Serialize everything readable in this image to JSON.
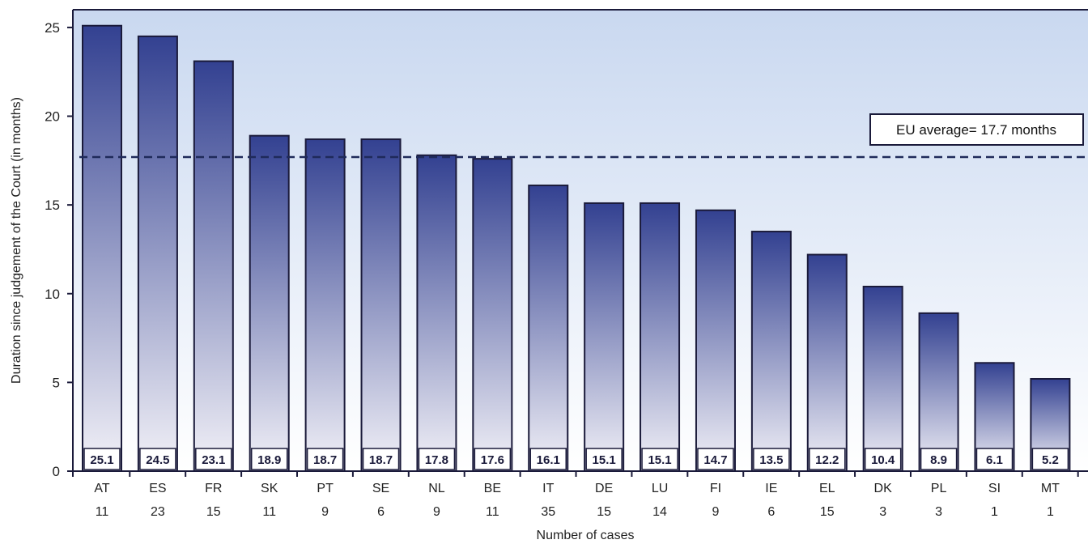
{
  "chart_data": {
    "type": "bar",
    "categories": [
      "AT",
      "ES",
      "FR",
      "SK",
      "PT",
      "SE",
      "NL",
      "BE",
      "IT",
      "DE",
      "LU",
      "FI",
      "IE",
      "EL",
      "DK",
      "PL",
      "SI",
      "MT"
    ],
    "case_counts": [
      "11",
      "23",
      "15",
      "11",
      "9",
      "6",
      "9",
      "11",
      "35",
      "15",
      "14",
      "9",
      "6",
      "15",
      "3",
      "3",
      "1",
      "1"
    ],
    "values": [
      25.1,
      24.5,
      23.1,
      18.9,
      18.7,
      18.7,
      17.8,
      17.6,
      16.1,
      15.1,
      15.1,
      14.7,
      13.5,
      12.2,
      10.4,
      8.9,
      6.1,
      5.2
    ],
    "value_labels": [
      "25.1",
      "24.5",
      "23.1",
      "18.9",
      "18.7",
      "18.7",
      "17.8",
      "17.6",
      "16.1",
      "15.1",
      "15.1",
      "14.7",
      "13.5",
      "12.2",
      "10.4",
      "8.9",
      "6.1",
      "5.2"
    ],
    "xlabel": "Number of cases",
    "ylabel": "Duration since judgement of the Court (in months)",
    "ylim": [
      0,
      26
    ],
    "yticks": [
      0,
      5,
      10,
      15,
      20,
      25
    ],
    "average": {
      "value": 17.7,
      "label": "EU average= 17.7 months"
    },
    "colors": {
      "bar_top": "#334191",
      "bar_bottom": "#f3f2f8",
      "bar_stroke": "#1a1a3a",
      "plot_bg_top": "#c9d8f0",
      "plot_bg_bottom": "#ffffff",
      "average_line": "#1f2a5a"
    }
  }
}
